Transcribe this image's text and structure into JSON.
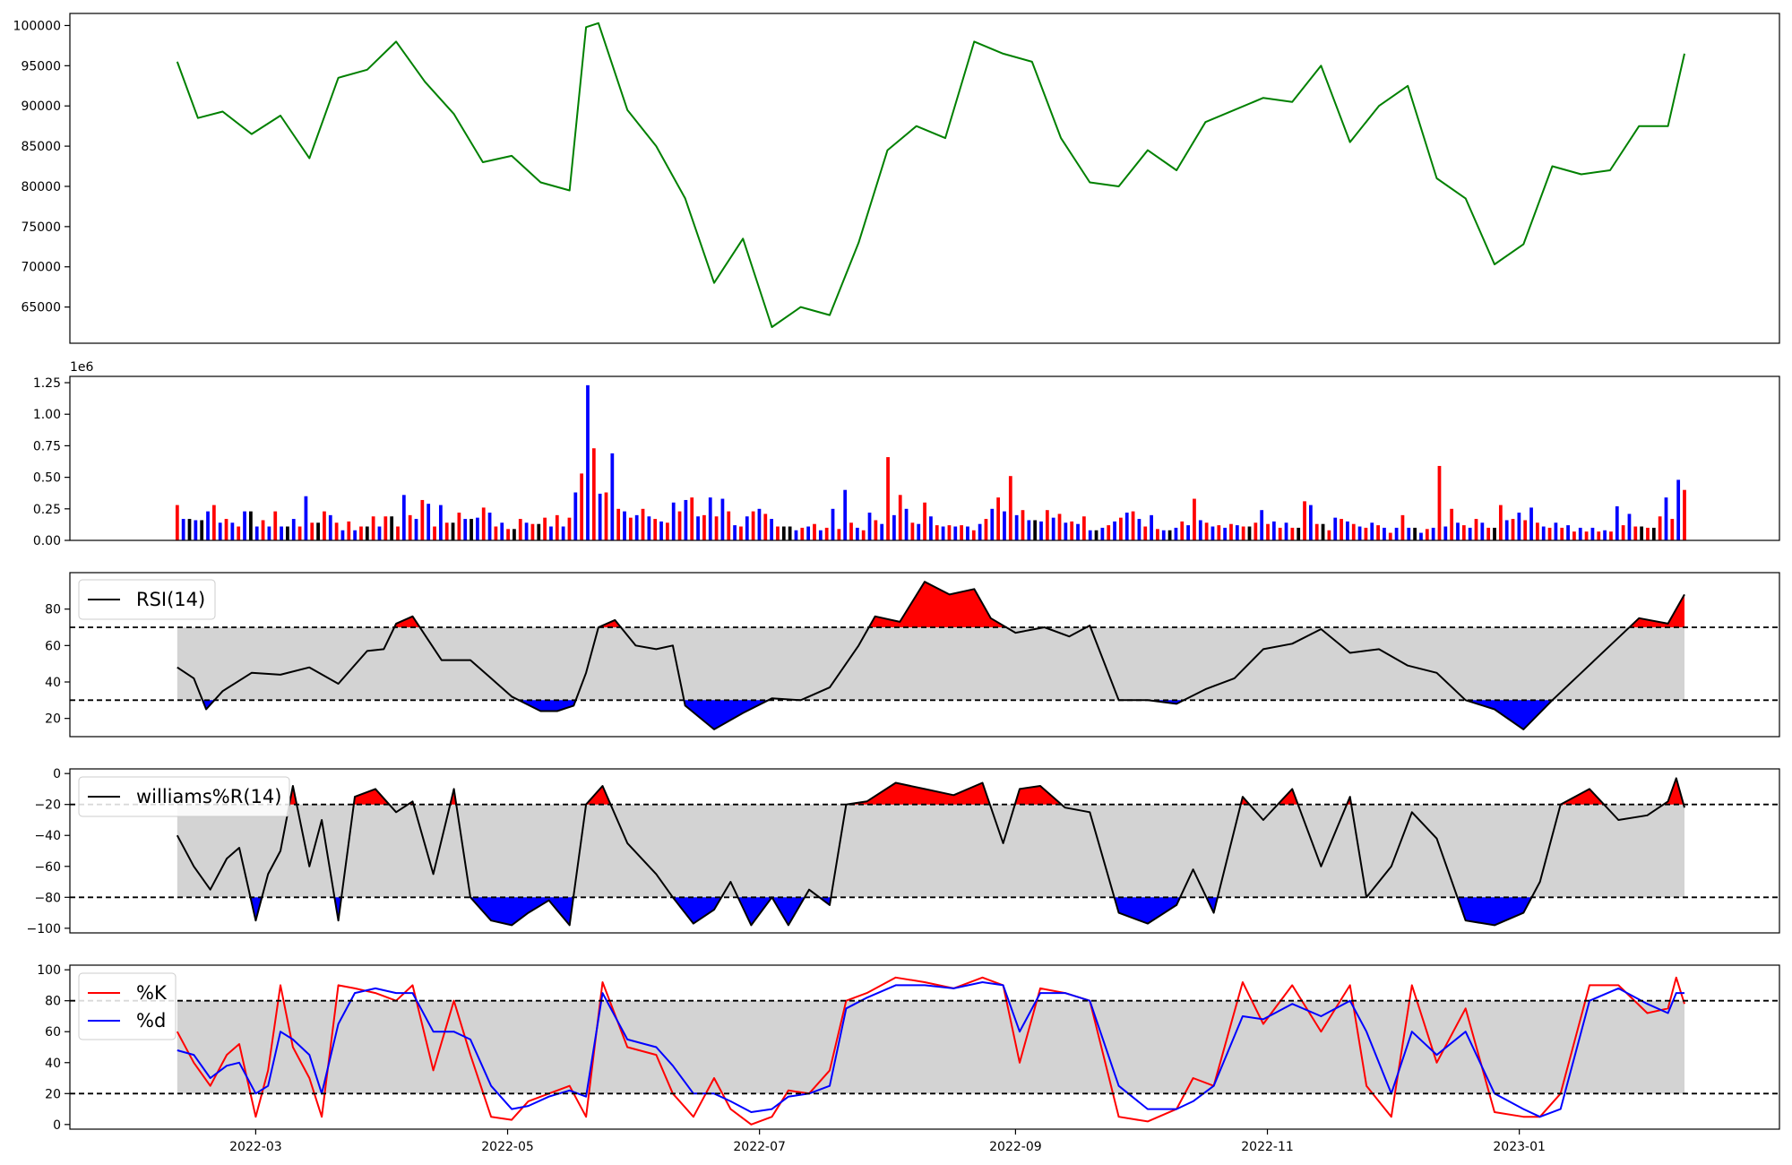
{
  "chart_data": [
    {
      "type": "line",
      "panel": "price",
      "ylim": [
        60500,
        101500
      ],
      "yticks": [
        65000,
        70000,
        75000,
        80000,
        85000,
        90000,
        95000,
        100000
      ],
      "color": "#008000",
      "x": [
        "2022-02-10",
        "2022-02-15",
        "2022-02-21",
        "2022-02-28",
        "2022-03-07",
        "2022-03-14",
        "2022-03-21",
        "2022-03-28",
        "2022-04-04",
        "2022-04-11",
        "2022-04-18",
        "2022-04-25",
        "2022-05-02",
        "2022-05-09",
        "2022-05-16",
        "2022-05-20",
        "2022-05-23",
        "2022-05-30",
        "2022-06-06",
        "2022-06-13",
        "2022-06-20",
        "2022-06-27",
        "2022-07-04",
        "2022-07-11",
        "2022-07-18",
        "2022-07-25",
        "2022-08-01",
        "2022-08-08",
        "2022-08-15",
        "2022-08-22",
        "2022-08-29",
        "2022-09-05",
        "2022-09-12",
        "2022-09-19",
        "2022-09-26",
        "2022-10-03",
        "2022-10-10",
        "2022-10-17",
        "2022-10-24",
        "2022-10-31",
        "2022-11-07",
        "2022-11-14",
        "2022-11-21",
        "2022-11-28",
        "2022-12-05",
        "2022-12-12",
        "2022-12-19",
        "2022-12-26",
        "2023-01-02",
        "2023-01-09",
        "2023-01-16",
        "2023-01-23",
        "2023-01-30",
        "2023-02-06",
        "2023-02-10"
      ],
      "values": [
        95500,
        88500,
        89300,
        86500,
        88800,
        83500,
        93500,
        94500,
        98000,
        93000,
        89000,
        83000,
        83800,
        80500,
        79500,
        99800,
        100300,
        89500,
        85000,
        78500,
        68000,
        73500,
        62500,
        65000,
        64000,
        73000,
        84500,
        87500,
        86000,
        98000,
        96500,
        95500,
        86000,
        80500,
        80000,
        84500,
        82000,
        88000,
        89500,
        91000,
        90500,
        95000,
        85500,
        90000,
        92500,
        81000,
        78500,
        70300,
        72800,
        82500,
        81500,
        82000,
        87500,
        87500,
        96500
      ]
    },
    {
      "type": "bar",
      "panel": "volume",
      "offset_label": "1e6",
      "ylim": [
        0,
        1300000
      ],
      "yticks": [
        0,
        250000,
        500000,
        750000,
        1000000,
        1250000
      ],
      "ytick_labels": [
        "0.00",
        "0.25",
        "0.50",
        "0.75",
        "1.00",
        "1.25"
      ],
      "colors": {
        "up": "#ff0000",
        "down": "#0000ff",
        "flat": "#000000"
      },
      "start_date": "2022-02-10",
      "values": [
        280000,
        170000,
        170000,
        160000,
        160000,
        230000,
        280000,
        140000,
        170000,
        140000,
        110000,
        230000,
        230000,
        110000,
        160000,
        110000,
        230000,
        110000,
        110000,
        170000,
        110000,
        350000,
        140000,
        140000,
        230000,
        200000,
        140000,
        80000,
        150000,
        80000,
        110000,
        110000,
        190000,
        110000,
        190000,
        190000,
        110000,
        360000,
        200000,
        170000,
        320000,
        290000,
        110000,
        280000,
        140000,
        140000,
        220000,
        170000,
        170000,
        180000,
        260000,
        220000,
        110000,
        140000,
        90000,
        90000,
        170000,
        140000,
        130000,
        130000,
        180000,
        110000,
        200000,
        110000,
        180000,
        380000,
        530000,
        1230000,
        730000,
        370000,
        380000,
        690000,
        250000,
        230000,
        180000,
        200000,
        250000,
        190000,
        170000,
        150000,
        140000,
        300000,
        230000,
        320000,
        340000,
        190000,
        200000,
        340000,
        190000,
        330000,
        230000,
        120000,
        110000,
        190000,
        230000,
        250000,
        210000,
        170000,
        110000,
        110000,
        110000,
        80000,
        100000,
        110000,
        130000,
        80000,
        100000,
        250000,
        90000,
        400000,
        140000,
        100000,
        80000,
        220000,
        160000,
        130000,
        660000,
        200000,
        360000,
        250000,
        140000,
        130000,
        300000,
        190000,
        120000,
        110000,
        120000,
        110000,
        120000,
        110000,
        80000,
        130000,
        170000,
        250000,
        340000,
        230000,
        510000,
        200000,
        240000,
        160000,
        160000,
        150000,
        240000,
        180000,
        210000,
        140000,
        150000,
        130000,
        190000,
        80000,
        80000,
        100000,
        120000,
        150000,
        180000,
        220000,
        230000,
        170000,
        110000,
        200000,
        90000,
        80000,
        80000,
        100000,
        150000,
        120000,
        330000,
        160000,
        140000,
        110000,
        120000,
        100000,
        130000,
        120000,
        110000,
        110000,
        140000,
        240000,
        130000,
        150000,
        100000,
        140000,
        100000,
        100000,
        310000,
        280000,
        130000,
        130000,
        80000,
        180000,
        170000,
        150000,
        130000,
        110000,
        100000,
        140000,
        120000,
        100000,
        60000,
        100000,
        200000,
        100000,
        100000,
        60000,
        90000,
        100000,
        590000,
        110000,
        250000,
        140000,
        120000,
        100000,
        170000,
        140000,
        100000,
        100000,
        280000,
        160000,
        170000,
        220000,
        160000,
        260000,
        140000,
        110000,
        100000,
        140000,
        100000,
        120000,
        70000,
        100000,
        70000,
        100000,
        70000,
        80000,
        70000,
        270000,
        120000,
        210000,
        110000,
        110000,
        100000,
        100000,
        190000,
        340000,
        170000,
        480000,
        400000
      ]
    },
    {
      "type": "line",
      "panel": "rsi",
      "legend": "RSI(14)",
      "ylim": [
        10,
        100
      ],
      "yticks": [
        20,
        40,
        60,
        80
      ],
      "upper": 70,
      "lower": 30,
      "x": [
        "2022-02-10",
        "2022-02-14",
        "2022-02-17",
        "2022-02-21",
        "2022-02-28",
        "2022-03-07",
        "2022-03-14",
        "2022-03-21",
        "2022-03-28",
        "2022-04-01",
        "2022-04-04",
        "2022-04-08",
        "2022-04-15",
        "2022-04-22",
        "2022-04-27",
        "2022-05-02",
        "2022-05-09",
        "2022-05-13",
        "2022-05-17",
        "2022-05-20",
        "2022-05-23",
        "2022-05-27",
        "2022-06-01",
        "2022-06-06",
        "2022-06-10",
        "2022-06-13",
        "2022-06-20",
        "2022-06-27",
        "2022-07-04",
        "2022-07-11",
        "2022-07-18",
        "2022-07-25",
        "2022-07-29",
        "2022-08-04",
        "2022-08-10",
        "2022-08-16",
        "2022-08-22",
        "2022-08-26",
        "2022-09-01",
        "2022-09-08",
        "2022-09-14",
        "2022-09-19",
        "2022-09-26",
        "2022-10-03",
        "2022-10-10",
        "2022-10-17",
        "2022-10-24",
        "2022-10-31",
        "2022-11-07",
        "2022-11-14",
        "2022-11-21",
        "2022-11-28",
        "2022-12-05",
        "2022-12-12",
        "2022-12-19",
        "2022-12-26",
        "2023-01-02",
        "2023-01-09",
        "2023-01-16",
        "2023-01-23",
        "2023-01-30",
        "2023-02-06",
        "2023-02-10"
      ],
      "values": [
        48,
        42,
        25,
        35,
        45,
        44,
        48,
        39,
        57,
        58,
        72,
        76,
        52,
        52,
        42,
        32,
        24,
        24,
        27,
        45,
        70,
        74,
        60,
        58,
        60,
        27,
        14,
        23,
        31,
        30,
        37,
        60,
        76,
        73,
        95,
        88,
        91,
        75,
        67,
        70,
        65,
        71,
        30,
        30,
        28,
        36,
        42,
        58,
        61,
        69,
        56,
        58,
        49,
        45,
        30,
        25,
        14,
        30,
        45,
        60,
        75,
        72,
        88
      ]
    },
    {
      "type": "line",
      "panel": "williams",
      "legend": "williams%R(14)",
      "ylim": [
        -103,
        3
      ],
      "yticks": [
        -100,
        -80,
        -60,
        -40,
        -20,
        0
      ],
      "ytick_labels": [
        "−100",
        "−80",
        "−60",
        "−40",
        "−20",
        "0"
      ],
      "upper": -20,
      "lower": -80,
      "x": [
        "2022-02-10",
        "2022-02-14",
        "2022-02-18",
        "2022-02-22",
        "2022-02-25",
        "2022-03-01",
        "2022-03-04",
        "2022-03-07",
        "2022-03-10",
        "2022-03-14",
        "2022-03-17",
        "2022-03-21",
        "2022-03-25",
        "2022-03-30",
        "2022-04-04",
        "2022-04-08",
        "2022-04-13",
        "2022-04-18",
        "2022-04-22",
        "2022-04-27",
        "2022-05-02",
        "2022-05-06",
        "2022-05-11",
        "2022-05-16",
        "2022-05-20",
        "2022-05-24",
        "2022-05-30",
        "2022-06-06",
        "2022-06-10",
        "2022-06-15",
        "2022-06-20",
        "2022-06-24",
        "2022-06-29",
        "2022-07-04",
        "2022-07-08",
        "2022-07-13",
        "2022-07-18",
        "2022-07-22",
        "2022-07-27",
        "2022-08-03",
        "2022-08-10",
        "2022-08-17",
        "2022-08-24",
        "2022-08-29",
        "2022-09-02",
        "2022-09-07",
        "2022-09-13",
        "2022-09-19",
        "2022-09-26",
        "2022-10-03",
        "2022-10-10",
        "2022-10-14",
        "2022-10-19",
        "2022-10-26",
        "2022-10-31",
        "2022-11-07",
        "2022-11-14",
        "2022-11-21",
        "2022-11-25",
        "2022-12-01",
        "2022-12-06",
        "2022-12-12",
        "2022-12-19",
        "2022-12-26",
        "2023-01-02",
        "2023-01-06",
        "2023-01-11",
        "2023-01-18",
        "2023-01-25",
        "2023-02-01",
        "2023-02-06",
        "2023-02-08",
        "2023-02-10"
      ],
      "values": [
        -40,
        -60,
        -75,
        -55,
        -48,
        -95,
        -65,
        -50,
        -8,
        -60,
        -30,
        -95,
        -15,
        -10,
        -25,
        -18,
        -65,
        -10,
        -80,
        -95,
        -98,
        -90,
        -82,
        -98,
        -20,
        -8,
        -45,
        -65,
        -80,
        -97,
        -88,
        -70,
        -98,
        -80,
        -98,
        -75,
        -85,
        -20,
        -18,
        -6,
        -10,
        -14,
        -6,
        -45,
        -10,
        -8,
        -22,
        -25,
        -90,
        -97,
        -85,
        -62,
        -90,
        -15,
        -30,
        -10,
        -60,
        -15,
        -80,
        -60,
        -25,
        -42,
        -95,
        -98,
        -90,
        -70,
        -20,
        -10,
        -30,
        -27,
        -18,
        -3,
        -22
      ]
    },
    {
      "type": "line",
      "panel": "stochastic",
      "ylim": [
        -3,
        103
      ],
      "yticks": [
        0,
        20,
        40,
        60,
        80,
        100
      ],
      "upper": 80,
      "lower": 20,
      "x": [
        "2022-02-10",
        "2022-02-14",
        "2022-02-18",
        "2022-02-22",
        "2022-02-25",
        "2022-03-01",
        "2022-03-04",
        "2022-03-07",
        "2022-03-10",
        "2022-03-14",
        "2022-03-17",
        "2022-03-21",
        "2022-03-25",
        "2022-03-30",
        "2022-04-04",
        "2022-04-08",
        "2022-04-13",
        "2022-04-18",
        "2022-04-22",
        "2022-04-27",
        "2022-05-02",
        "2022-05-06",
        "2022-05-11",
        "2022-05-16",
        "2022-05-20",
        "2022-05-24",
        "2022-05-30",
        "2022-06-06",
        "2022-06-10",
        "2022-06-15",
        "2022-06-20",
        "2022-06-24",
        "2022-06-29",
        "2022-07-04",
        "2022-07-08",
        "2022-07-13",
        "2022-07-18",
        "2022-07-22",
        "2022-07-27",
        "2022-08-03",
        "2022-08-10",
        "2022-08-17",
        "2022-08-24",
        "2022-08-29",
        "2022-09-02",
        "2022-09-07",
        "2022-09-13",
        "2022-09-19",
        "2022-09-26",
        "2022-10-03",
        "2022-10-10",
        "2022-10-14",
        "2022-10-19",
        "2022-10-26",
        "2022-10-31",
        "2022-11-07",
        "2022-11-14",
        "2022-11-21",
        "2022-11-25",
        "2022-12-01",
        "2022-12-06",
        "2022-12-12",
        "2022-12-19",
        "2022-12-26",
        "2023-01-02",
        "2023-01-06",
        "2023-01-11",
        "2023-01-18",
        "2023-01-25",
        "2023-02-01",
        "2023-02-06",
        "2023-02-08",
        "2023-02-10"
      ],
      "series": [
        {
          "name": "%K",
          "color": "#ff0000",
          "values": [
            60,
            40,
            25,
            45,
            52,
            5,
            35,
            90,
            50,
            30,
            5,
            90,
            88,
            85,
            80,
            90,
            35,
            80,
            45,
            5,
            3,
            15,
            20,
            25,
            5,
            92,
            50,
            45,
            20,
            5,
            30,
            10,
            0,
            5,
            22,
            20,
            35,
            80,
            85,
            95,
            92,
            88,
            95,
            90,
            40,
            88,
            85,
            80,
            5,
            2,
            10,
            30,
            25,
            92,
            65,
            90,
            60,
            90,
            25,
            5,
            90,
            40,
            75,
            8,
            5,
            5,
            20,
            90,
            90,
            72,
            75,
            95,
            78
          ],
          "x_dates": [
            "2022-02-10",
            "2022-02-14",
            "2022-02-18",
            "2022-02-22",
            "2022-02-25",
            "2022-03-01",
            "2022-03-04",
            "2022-03-07",
            "2022-03-10",
            "2022-03-14",
            "2022-03-17",
            "2022-03-21",
            "2022-03-25",
            "2022-03-30",
            "2022-04-04",
            "2022-04-08",
            "2022-04-13",
            "2022-04-18",
            "2022-04-22",
            "2022-04-27",
            "2022-05-02",
            "2022-05-06",
            "2022-05-11",
            "2022-05-16",
            "2022-05-20",
            "2022-05-24",
            "2022-05-30",
            "2022-06-06",
            "2022-06-10",
            "2022-06-15",
            "2022-06-20",
            "2022-06-24",
            "2022-06-29",
            "2022-07-04",
            "2022-07-08",
            "2022-07-13",
            "2022-07-18",
            "2022-07-22",
            "2022-07-27",
            "2022-08-03",
            "2022-08-10",
            "2022-08-17",
            "2022-08-24",
            "2022-08-29",
            "2022-09-02",
            "2022-09-07",
            "2022-09-13",
            "2022-09-19",
            "2022-09-26",
            "2022-10-03",
            "2022-10-10",
            "2022-10-14",
            "2022-10-19",
            "2022-10-26",
            "2022-10-31",
            "2022-11-07",
            "2022-11-14",
            "2022-11-21",
            "2022-11-25",
            "2022-12-01",
            "2022-12-06",
            "2022-12-12",
            "2022-12-19",
            "2022-12-26",
            "2023-01-02",
            "2023-01-06",
            "2023-01-11",
            "2023-01-18",
            "2023-01-25",
            "2023-02-01",
            "2023-02-06",
            "2023-02-08",
            "2023-02-10"
          ]
        },
        {
          "name": "%d",
          "color": "#0000ff",
          "values": [
            48,
            45,
            30,
            38,
            40,
            20,
            25,
            60,
            55,
            45,
            20,
            65,
            85,
            88,
            85,
            85,
            60,
            60,
            55,
            25,
            10,
            12,
            18,
            22,
            18,
            85,
            55,
            50,
            38,
            20,
            20,
            15,
            8,
            10,
            18,
            20,
            25,
            75,
            82,
            90,
            90,
            88,
            92,
            90,
            60,
            85,
            85,
            80,
            25,
            10,
            10,
            15,
            25,
            70,
            68,
            78,
            70,
            80,
            60,
            20,
            60,
            45,
            60,
            20,
            10,
            5,
            10,
            80,
            88,
            78,
            72,
            85,
            85
          ]
        }
      ]
    },
    {
      "type": "axis",
      "panel": "shared-x",
      "x_ticks": [
        "2022-03",
        "2022-05",
        "2022-07",
        "2022-09",
        "2022-11",
        "2023-01"
      ],
      "xlim": [
        "2022-01-15",
        "2023-03-05"
      ]
    }
  ]
}
